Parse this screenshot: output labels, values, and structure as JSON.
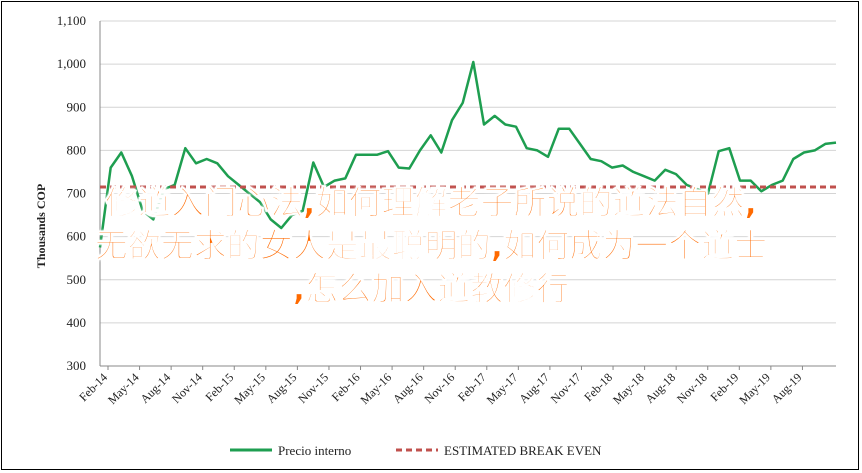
{
  "chart_data": {
    "type": "line",
    "ylabel": "Thousands COP",
    "ylim": [
      300,
      1100
    ],
    "yticks": [
      "300",
      "400",
      "500",
      "600",
      "700",
      "800",
      "900",
      "1,000",
      "1,100"
    ],
    "xtick_labels": [
      "Feb-14",
      "May-14",
      "Aug-14",
      "Nov-14",
      "Feb-15",
      "May-15",
      "Aug-15",
      "Nov-15",
      "Feb-16",
      "May-16",
      "Aug-16",
      "Nov-16",
      "Feb-17",
      "May-17",
      "Aug-17",
      "Nov-17",
      "Feb-18",
      "May-18",
      "Aug-18",
      "Nov-18",
      "Feb-19",
      "May-19",
      "Aug-19"
    ],
    "grid": true,
    "legend_position": "bottom",
    "series": [
      {
        "name": "Precio interno",
        "style": "solid",
        "color": "#1e9e50",
        "values": [
          575,
          760,
          795,
          740,
          660,
          640,
          710,
          720,
          805,
          770,
          780,
          770,
          740,
          720,
          700,
          680,
          640,
          620,
          650,
          660,
          772,
          715,
          730,
          735,
          790,
          790,
          790,
          798,
          760,
          758,
          800,
          835,
          795,
          870,
          910,
          1005,
          860,
          880,
          860,
          855,
          805,
          800,
          785,
          850,
          850,
          815,
          780,
          775,
          760,
          765,
          750,
          740,
          730,
          755,
          745,
          720,
          710,
          700,
          798,
          805,
          730,
          730,
          705,
          720,
          730,
          780,
          795,
          800,
          815,
          818
        ]
      },
      {
        "name": "ESTIMATED BREAK EVEN",
        "style": "dashed",
        "color": "#c0504d",
        "values": [
          715,
          715
        ]
      }
    ]
  },
  "overlay": {
    "line1": "修道入门心法,如何理解老子所说的道法自然,",
    "line2": "无欲无求的女人是最聪明的,如何成为一个道士",
    "line3": ",怎么加入道教修行"
  }
}
